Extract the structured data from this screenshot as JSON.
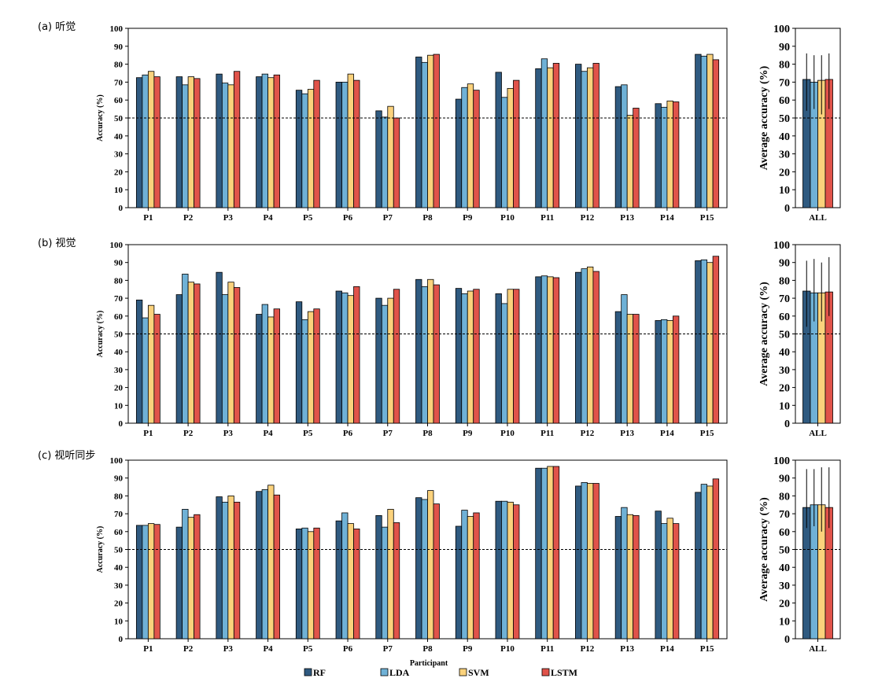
{
  "legend": [
    {
      "name": "RF",
      "color": "#2f5a80"
    },
    {
      "name": "LDA",
      "color": "#6fb1d6"
    },
    {
      "name": "SVM",
      "color": "#fbd27c"
    },
    {
      "name": "LSTM",
      "color": "#e0534a"
    }
  ],
  "xlabel": "Participant",
  "chart_data": [
    {
      "type": "bar",
      "panel_label": "(a) 听觉",
      "ylabel": "Accuracy (%)",
      "ylim": [
        0,
        100
      ],
      "yticks": [
        0,
        10,
        20,
        30,
        40,
        50,
        60,
        70,
        80,
        90,
        100
      ],
      "reference_line": 50,
      "categories": [
        "P1",
        "P2",
        "P3",
        "P4",
        "P5",
        "P6",
        "P7",
        "P8",
        "P9",
        "P10",
        "P11",
        "P12",
        "P13",
        "P14",
        "P15"
      ],
      "series": [
        {
          "name": "RF",
          "values": [
            72.5,
            73,
            74.5,
            73,
            65.5,
            70,
            54,
            84,
            60.5,
            75.5,
            77.5,
            80,
            67.5,
            58,
            85.5
          ]
        },
        {
          "name": "LDA",
          "values": [
            74,
            68.5,
            69.5,
            74.5,
            63.5,
            70,
            50.5,
            81,
            67,
            61.5,
            83,
            76,
            68.5,
            56,
            84.5
          ]
        },
        {
          "name": "SVM",
          "values": [
            76,
            73,
            68.5,
            72.5,
            66,
            74.5,
            56.5,
            85,
            69,
            66.5,
            78,
            78,
            51.5,
            59.5,
            85.5
          ]
        },
        {
          "name": "LSTM",
          "values": [
            73,
            72,
            76,
            74,
            71,
            71,
            50,
            85.5,
            65.5,
            71,
            80.5,
            80.5,
            55.5,
            59,
            82.5
          ]
        }
      ]
    },
    {
      "type": "bar",
      "ylabel": "Average accuracy (%)",
      "ylim": [
        0,
        100
      ],
      "yticks": [
        0,
        10,
        20,
        30,
        40,
        50,
        60,
        70,
        80,
        90,
        100
      ],
      "reference_line": 50,
      "categories": [
        "ALL"
      ],
      "series": [
        {
          "name": "RF",
          "values": [
            71.5
          ],
          "error_high": 86,
          "error_low": 54
        },
        {
          "name": "LDA",
          "values": [
            70
          ],
          "error_high": 85,
          "error_low": 55
        },
        {
          "name": "SVM",
          "values": [
            71
          ],
          "error_high": 85,
          "error_low": 52
        },
        {
          "name": "LSTM",
          "values": [
            71.5
          ],
          "error_high": 86,
          "error_low": 55
        }
      ]
    },
    {
      "type": "bar",
      "panel_label": "(b) 视觉",
      "ylabel": "Accuracy (%)",
      "ylim": [
        0,
        100
      ],
      "yticks": [
        0,
        10,
        20,
        30,
        40,
        50,
        60,
        70,
        80,
        90,
        100
      ],
      "reference_line": 50,
      "categories": [
        "P1",
        "P2",
        "P3",
        "P4",
        "P5",
        "P6",
        "P7",
        "P8",
        "P9",
        "P10",
        "P11",
        "P12",
        "P13",
        "P14",
        "P15"
      ],
      "series": [
        {
          "name": "RF",
          "values": [
            69,
            72,
            84.5,
            61,
            68,
            74,
            70,
            80.5,
            75.5,
            72.5,
            82,
            84.5,
            62.5,
            57.5,
            91
          ]
        },
        {
          "name": "LDA",
          "values": [
            59,
            83.5,
            72,
            66.5,
            58,
            73,
            66,
            76.5,
            72.5,
            67,
            82.5,
            86.5,
            72,
            58,
            91.5
          ]
        },
        {
          "name": "SVM",
          "values": [
            66,
            79,
            79,
            59.5,
            62.5,
            71.5,
            70,
            80.5,
            74,
            75,
            82,
            87.5,
            61,
            57.5,
            90
          ]
        },
        {
          "name": "LSTM",
          "values": [
            61,
            78,
            76,
            64,
            64,
            76.5,
            75,
            77.5,
            75,
            75,
            81.5,
            85,
            61,
            60,
            93.5
          ]
        }
      ]
    },
    {
      "type": "bar",
      "ylabel": "Average accuracy (%)",
      "ylim": [
        0,
        100
      ],
      "yticks": [
        0,
        10,
        20,
        30,
        40,
        50,
        60,
        70,
        80,
        90,
        100
      ],
      "reference_line": 50,
      "categories": [
        "ALL"
      ],
      "series": [
        {
          "name": "RF",
          "values": [
            74
          ],
          "error_high": 91,
          "error_low": 54
        },
        {
          "name": "LDA",
          "values": [
            73
          ],
          "error_high": 92,
          "error_low": 57
        },
        {
          "name": "SVM",
          "values": [
            73
          ],
          "error_high": 90,
          "error_low": 57
        },
        {
          "name": "LSTM",
          "values": [
            73.5
          ],
          "error_high": 93,
          "error_low": 60
        }
      ]
    },
    {
      "type": "bar",
      "panel_label": "(c) 视听同步",
      "ylabel": "Accuracy (%)",
      "ylim": [
        0,
        100
      ],
      "yticks": [
        0,
        10,
        20,
        30,
        40,
        50,
        60,
        70,
        80,
        90,
        100
      ],
      "reference_line": 50,
      "categories": [
        "P1",
        "P2",
        "P3",
        "P4",
        "P5",
        "P6",
        "P7",
        "P8",
        "P9",
        "P10",
        "P11",
        "P12",
        "P13",
        "P14",
        "P15"
      ],
      "series": [
        {
          "name": "RF",
          "values": [
            63.5,
            62.5,
            79.5,
            82.5,
            61.5,
            66,
            69,
            79,
            63,
            77,
            95.5,
            85.5,
            68.5,
            71.5,
            82
          ]
        },
        {
          "name": "LDA",
          "values": [
            63.5,
            72.5,
            76.5,
            83.5,
            62,
            70.5,
            62.5,
            78,
            72,
            77,
            95.5,
            87.5,
            73.5,
            64.5,
            86.5
          ]
        },
        {
          "name": "SVM",
          "values": [
            64.5,
            68,
            80,
            86,
            60,
            64.5,
            72.5,
            83,
            68.5,
            76.5,
            96.5,
            87,
            69.5,
            67.5,
            85.5
          ]
        },
        {
          "name": "LSTM",
          "values": [
            64,
            69.5,
            76.5,
            80.5,
            62,
            61.5,
            65,
            75.5,
            70.5,
            75,
            96.5,
            87,
            69,
            64.5,
            89.5
          ]
        }
      ]
    },
    {
      "type": "bar",
      "ylabel": "Average accuracy (%)",
      "ylim": [
        0,
        100
      ],
      "yticks": [
        0,
        10,
        20,
        30,
        40,
        50,
        60,
        70,
        80,
        90,
        100
      ],
      "reference_line": 50,
      "categories": [
        "ALL"
      ],
      "series": [
        {
          "name": "RF",
          "values": [
            73.5
          ],
          "error_high": 95,
          "error_low": 62
        },
        {
          "name": "LDA",
          "values": [
            75
          ],
          "error_high": 95,
          "error_low": 63
        },
        {
          "name": "SVM",
          "values": [
            75
          ],
          "error_high": 96,
          "error_low": 60
        },
        {
          "name": "LSTM",
          "values": [
            73.5
          ],
          "error_high": 96,
          "error_low": 62
        }
      ]
    }
  ]
}
